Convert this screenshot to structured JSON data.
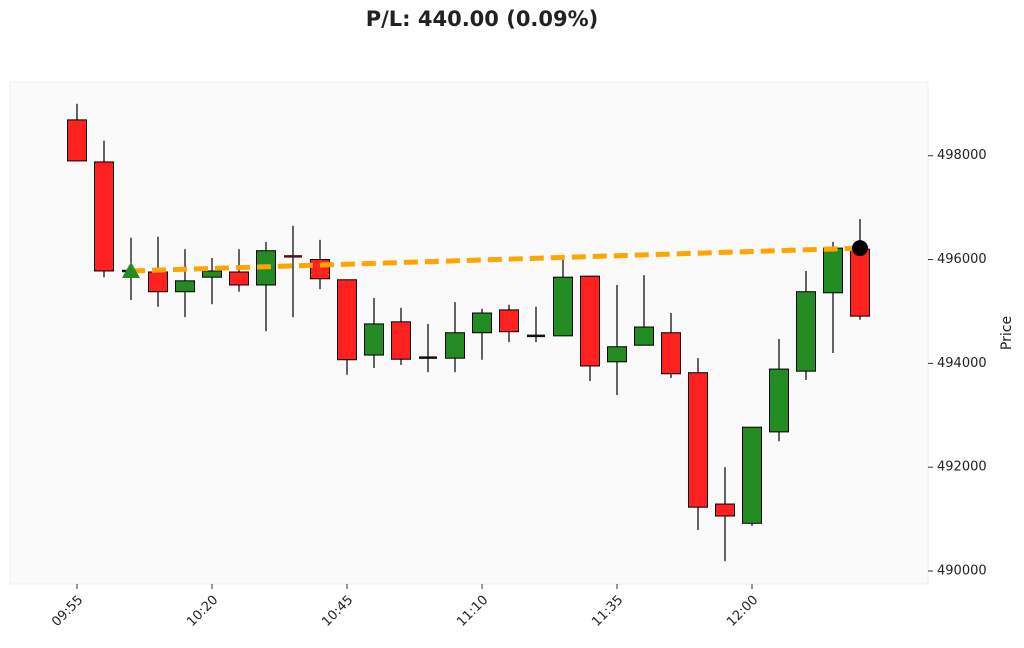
{
  "chart_data": {
    "type": "candlestick",
    "title": "P/L: 440.00 (0.09%)",
    "categories": [
      "09:55",
      null,
      null,
      null,
      null,
      "10:20",
      null,
      null,
      null,
      null,
      "10:45",
      null,
      null,
      null,
      null,
      "11:10",
      null,
      null,
      null,
      null,
      "11:35",
      null,
      null,
      null,
      null,
      "12:00",
      null,
      null,
      null,
      null
    ],
    "open": [
      498690,
      497880,
      495780,
      495760,
      495380,
      495660,
      495760,
      495510,
      496060,
      496000,
      495610,
      494160,
      494800,
      494110,
      494100,
      494590,
      495030,
      494530,
      494530,
      495680,
      494030,
      494350,
      494590,
      493820,
      491290,
      490920,
      492680,
      493850,
      495360,
      496200
    ],
    "high": [
      499000,
      498290,
      496420,
      496440,
      496200,
      496030,
      496200,
      496340,
      496650,
      496380,
      495610,
      495260,
      495070,
      494760,
      495180,
      495050,
      495130,
      495090,
      496010,
      495680,
      495510,
      495700,
      494970,
      494100,
      492000,
      492770,
      494470,
      495780,
      496340,
      496780
    ],
    "low": [
      497900,
      495660,
      495220,
      495090,
      494890,
      495140,
      495380,
      494620,
      494890,
      495430,
      493780,
      493910,
      493970,
      493830,
      493830,
      494070,
      494410,
      494410,
      494530,
      493660,
      493390,
      494350,
      493720,
      490790,
      490190,
      490870,
      492500,
      493680,
      494200,
      494840
    ],
    "close": [
      497900,
      495780,
      495780,
      495380,
      495590,
      495780,
      495510,
      496170,
      496040,
      495630,
      494070,
      494760,
      494080,
      494110,
      494590,
      494970,
      494610,
      494530,
      495660,
      493950,
      494320,
      494700,
      493800,
      491230,
      491060,
      492770,
      493890,
      495380,
      496220,
      494910
    ],
    "up_color": "#228b22",
    "down_color": "#ff2020",
    "entry": {
      "x": 2,
      "price": 495780,
      "color": "#228b22"
    },
    "exit": {
      "x": 29,
      "price": 496220,
      "color": "#000000"
    },
    "trade_line_color": "#ffa500",
    "y_label": "Price",
    "ylim": [
      489750,
      499420
    ],
    "yticks": [
      490000,
      492000,
      494000,
      496000,
      498000
    ]
  }
}
